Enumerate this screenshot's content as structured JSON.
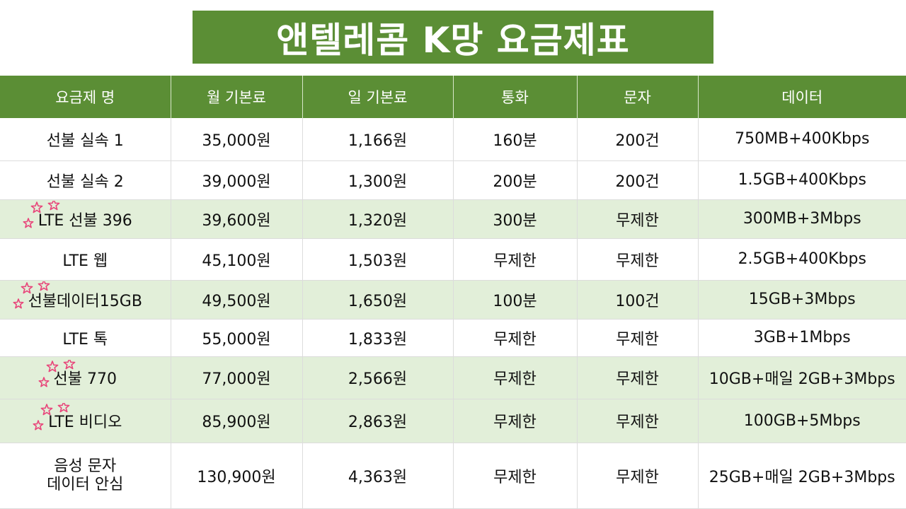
{
  "title": "앤텔레콤 K망 요금제표",
  "colors": {
    "header_green": "#5b8e35",
    "highlight_row": "#e2efd9",
    "star_pink": "#e8457a"
  },
  "headers": [
    "요금제 명",
    "월 기본료",
    "일 기본료",
    "통화",
    "문자",
    "데이터"
  ],
  "rows": [
    {
      "name": "선불 실속 1",
      "monthly": "35,000원",
      "daily": "1,166원",
      "call": "160분",
      "sms": "200건",
      "data": "750MB+400Kbps",
      "highlight": false,
      "starred": false
    },
    {
      "name": "선불 실속 2",
      "monthly": "39,000원",
      "daily": "1,300원",
      "call": "200분",
      "sms": "200건",
      "data": "1.5GB+400Kbps",
      "highlight": false,
      "starred": false
    },
    {
      "name": "LTE 선불 396",
      "monthly": "39,600원",
      "daily": "1,320원",
      "call": "300분",
      "sms": "무제한",
      "data": "300MB+3Mbps",
      "highlight": true,
      "starred": true
    },
    {
      "name": "LTE 웹",
      "monthly": "45,100원",
      "daily": "1,503원",
      "call": "무제한",
      "sms": "무제한",
      "data": "2.5GB+400Kbps",
      "highlight": false,
      "starred": false
    },
    {
      "name": "선불데이터15GB",
      "monthly": "49,500원",
      "daily": "1,650원",
      "call": "100분",
      "sms": "100건",
      "data": "15GB+3Mbps",
      "highlight": true,
      "starred": true
    },
    {
      "name": "LTE 톡",
      "monthly": "55,000원",
      "daily": "1,833원",
      "call": "무제한",
      "sms": "무제한",
      "data": "3GB+1Mbps",
      "highlight": false,
      "starred": false
    },
    {
      "name": "선불 770",
      "monthly": "77,000원",
      "daily": "2,566원",
      "call": "무제한",
      "sms": "무제한",
      "data": "10GB+매일 2GB+3Mbps",
      "highlight": true,
      "starred": true
    },
    {
      "name": "LTE 비디오",
      "monthly": "85,900원",
      "daily": "2,863원",
      "call": "무제한",
      "sms": "무제한",
      "data": "100GB+5Mbps",
      "highlight": true,
      "starred": true
    },
    {
      "name_lines": [
        "음성 문자",
        "데이터 안심"
      ],
      "monthly": "130,900원",
      "daily": "4,363원",
      "call": "무제한",
      "sms": "무제한",
      "data": "25GB+매일 2GB+3Mbps",
      "highlight": false,
      "starred": false
    }
  ]
}
